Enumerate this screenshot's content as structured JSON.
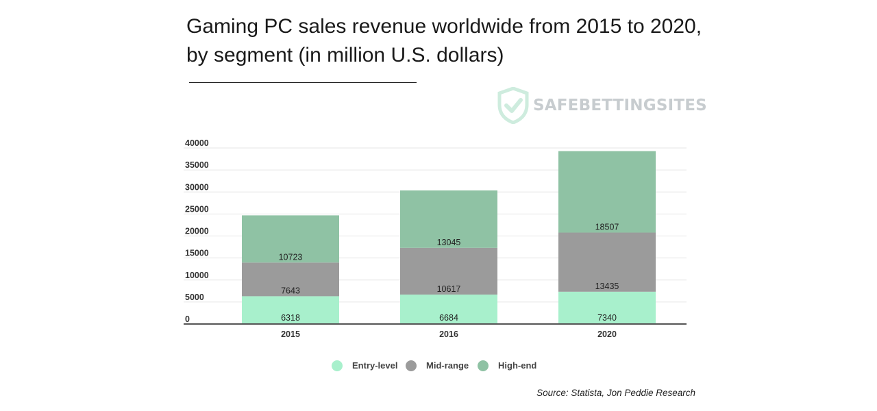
{
  "watermark": {
    "text": "SAFEBETTINGSITES",
    "icon": "shield-check-icon"
  },
  "source": "Source: Statista, Jon Peddie Research",
  "chart_data": {
    "type": "bar",
    "stacked": true,
    "title": "Gaming PC sales revenue worldwide from 2015 to 2020, by segment (in million U.S. dollars)",
    "xlabel": "",
    "ylabel": "",
    "categories": [
      "2015",
      "2016",
      "2020"
    ],
    "ylim": [
      0,
      40000
    ],
    "yticks": [
      0,
      5000,
      10000,
      15000,
      20000,
      25000,
      30000,
      35000,
      40000
    ],
    "grid": true,
    "legend_position": "bottom",
    "series": [
      {
        "name": "Entry-level",
        "color": "#a8f0cc",
        "values": [
          6318,
          6684,
          7340
        ]
      },
      {
        "name": "Mid-range",
        "color": "#9b9b9b",
        "values": [
          7643,
          10617,
          13435
        ]
      },
      {
        "name": "High-end",
        "color": "#8fc2a4",
        "values": [
          10723,
          13045,
          18507
        ]
      }
    ]
  }
}
